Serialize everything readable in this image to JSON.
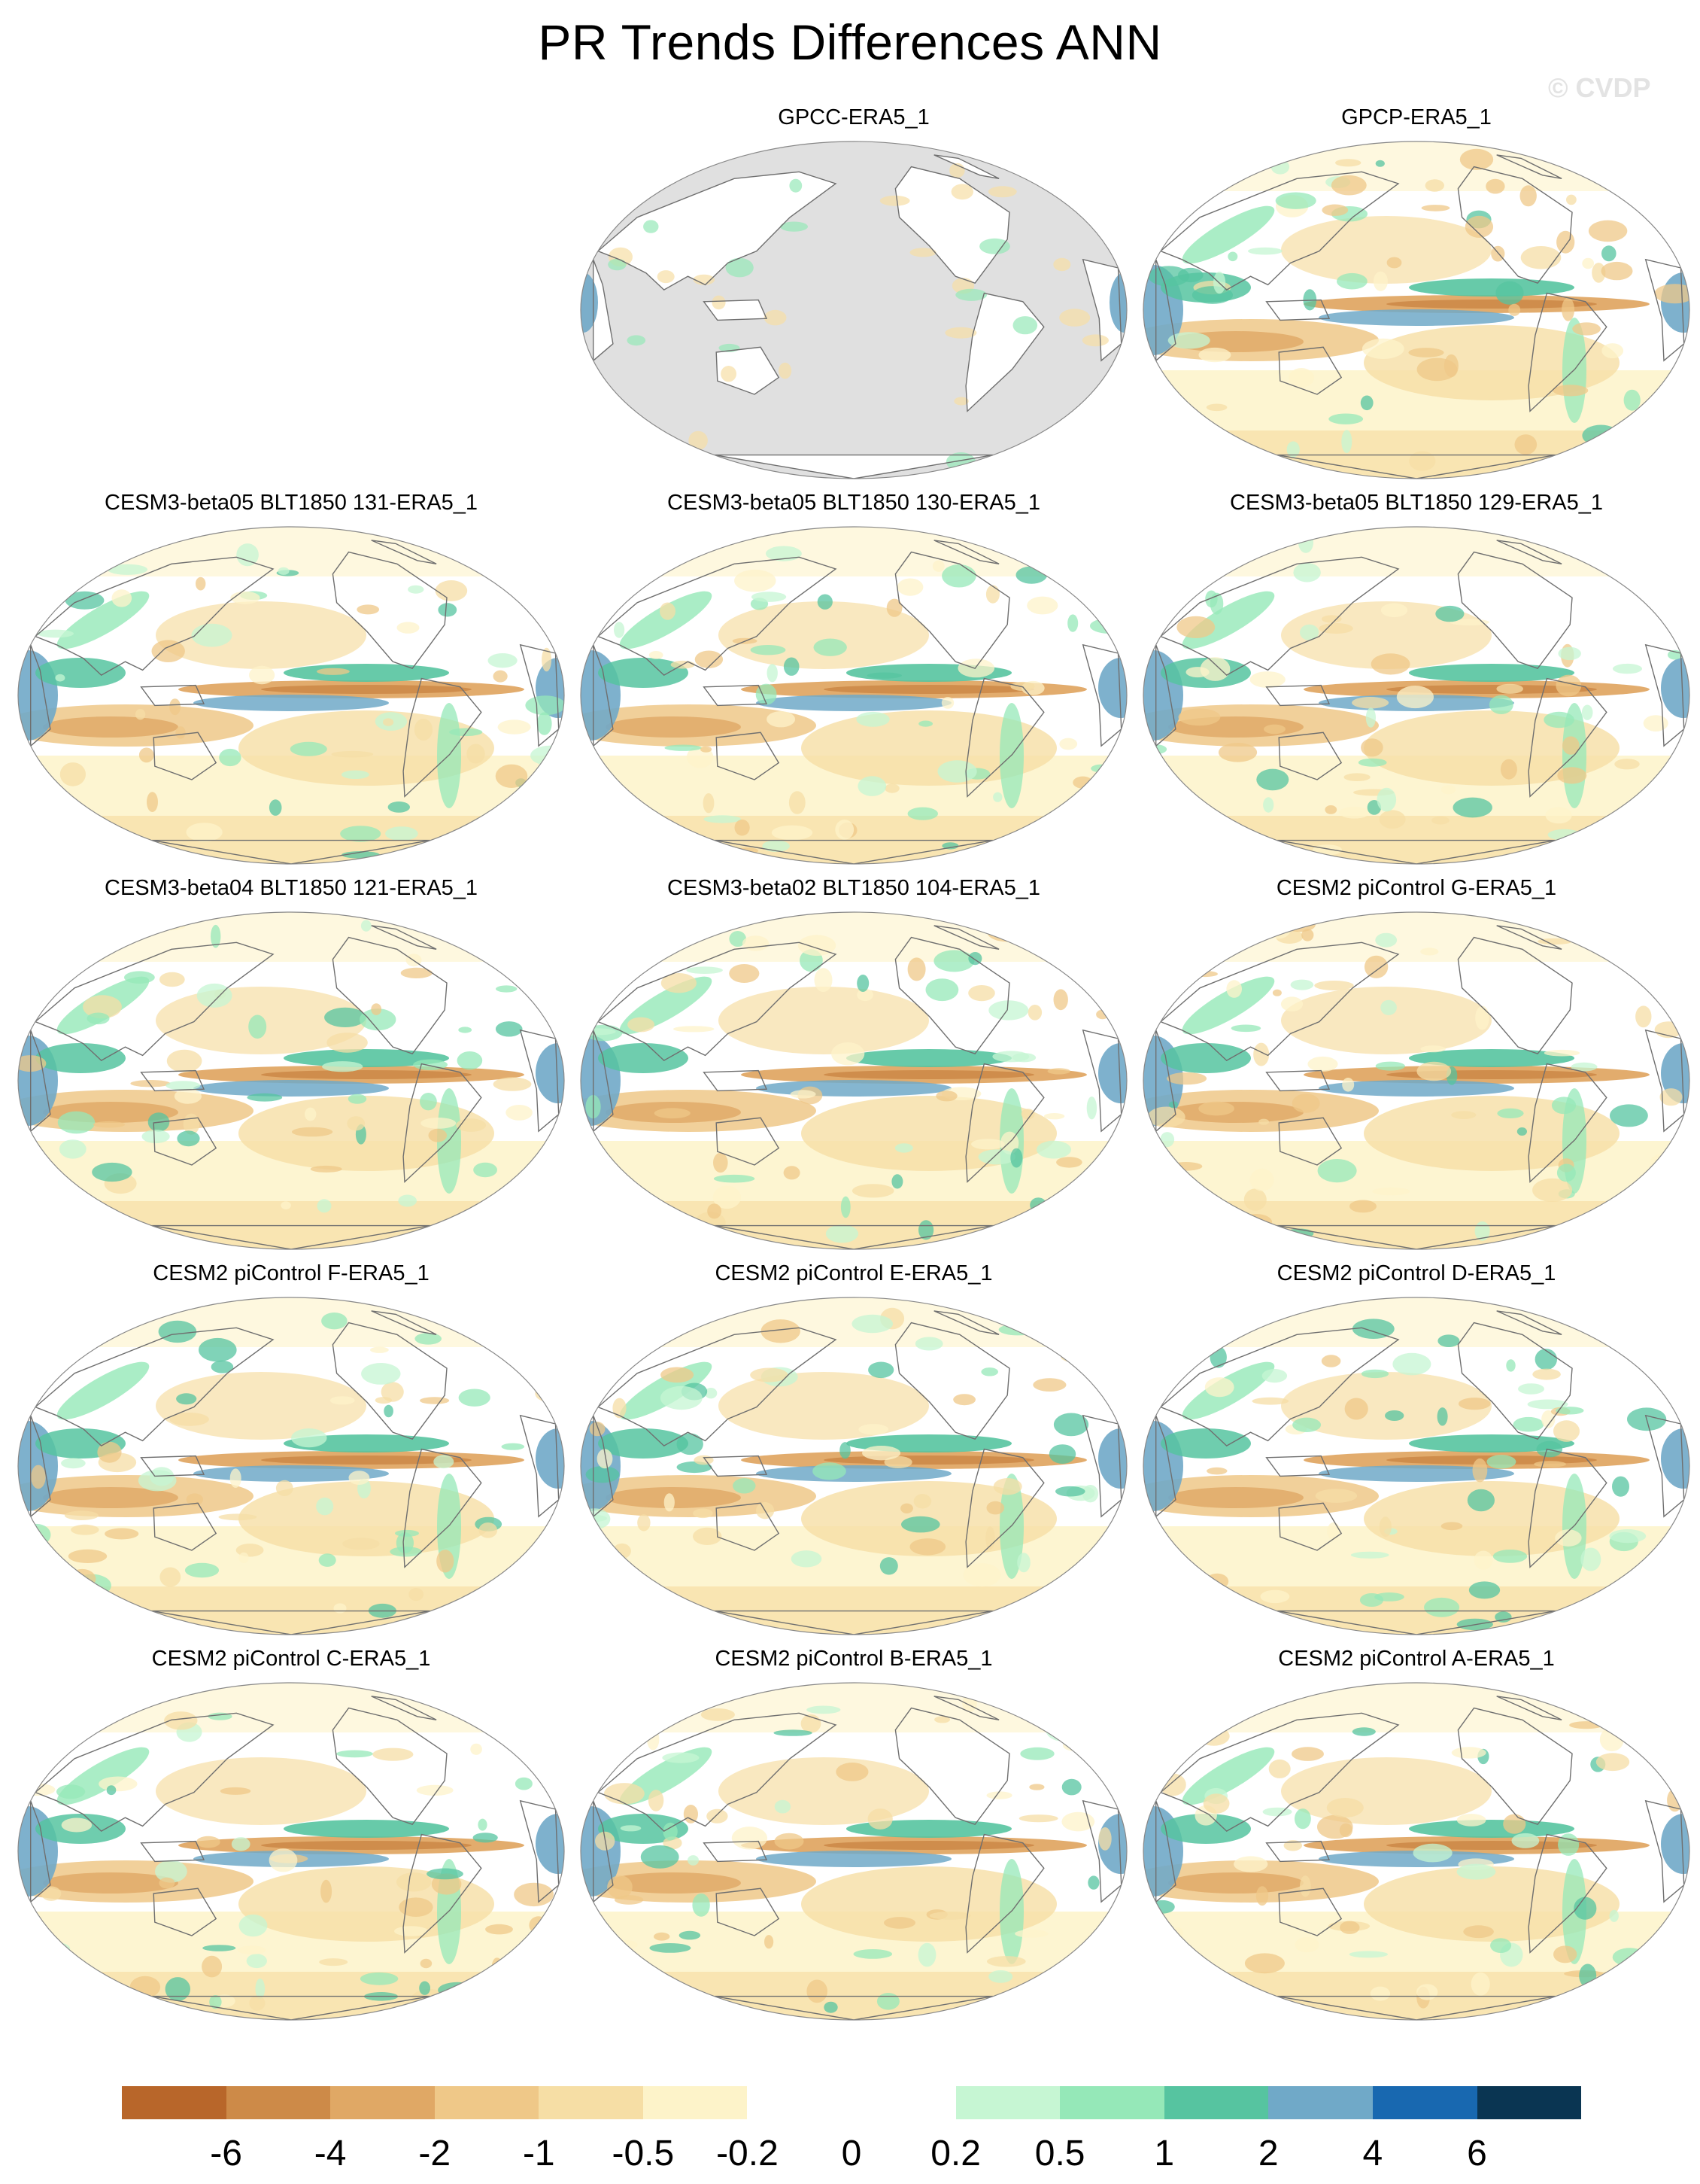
{
  "title": "PR Trends Differences ANN",
  "watermark": "© CVDP",
  "panels": [
    {
      "title": "GPCC-ERA5_1",
      "land_masked": false,
      "ocean_masked": true
    },
    {
      "title": "GPCP-ERA5_1",
      "land_masked": false,
      "ocean_masked": false
    },
    {
      "title": "CESM3-beta05 BLT1850 131-ERA5_1",
      "land_masked": false,
      "ocean_masked": false
    },
    {
      "title": "CESM3-beta05 BLT1850 130-ERA5_1",
      "land_masked": false,
      "ocean_masked": false
    },
    {
      "title": "CESM3-beta05 BLT1850 129-ERA5_1",
      "land_masked": false,
      "ocean_masked": false
    },
    {
      "title": "CESM3-beta04 BLT1850 121-ERA5_1",
      "land_masked": false,
      "ocean_masked": false
    },
    {
      "title": "CESM3-beta02 BLT1850 104-ERA5_1",
      "land_masked": false,
      "ocean_masked": false
    },
    {
      "title": "CESM2 piControl G-ERA5_1",
      "land_masked": false,
      "ocean_masked": false
    },
    {
      "title": "CESM2 piControl F-ERA5_1",
      "land_masked": false,
      "ocean_masked": false
    },
    {
      "title": "CESM2 piControl E-ERA5_1",
      "land_masked": false,
      "ocean_masked": false
    },
    {
      "title": "CESM2 piControl D-ERA5_1",
      "land_masked": false,
      "ocean_masked": false
    },
    {
      "title": "CESM2 piControl C-ERA5_1",
      "land_masked": false,
      "ocean_masked": false
    },
    {
      "title": "CESM2 piControl B-ERA5_1",
      "land_masked": false,
      "ocean_masked": false
    },
    {
      "title": "CESM2 piControl A-ERA5_1",
      "land_masked": false,
      "ocean_masked": false
    }
  ],
  "colorbar": {
    "colors": [
      "#b8662a",
      "#cd8a48",
      "#e0a865",
      "#efc888",
      "#f6dea5",
      "#fdf3c9",
      "#ffffff",
      "#ffffff",
      "#c6f6d3",
      "#95e8b8",
      "#56c4a0",
      "#70a9c8",
      "#1868b0",
      "#0a3552"
    ],
    "labels": [
      "-6",
      "-4",
      "-2",
      "-1",
      "-0.5",
      "-0.2",
      "0",
      "0.2",
      "0.5",
      "1",
      "2",
      "4",
      "6"
    ]
  },
  "map": {
    "masked_color": "#e0e0e0",
    "coastline_color": "#6f6f6f"
  }
}
